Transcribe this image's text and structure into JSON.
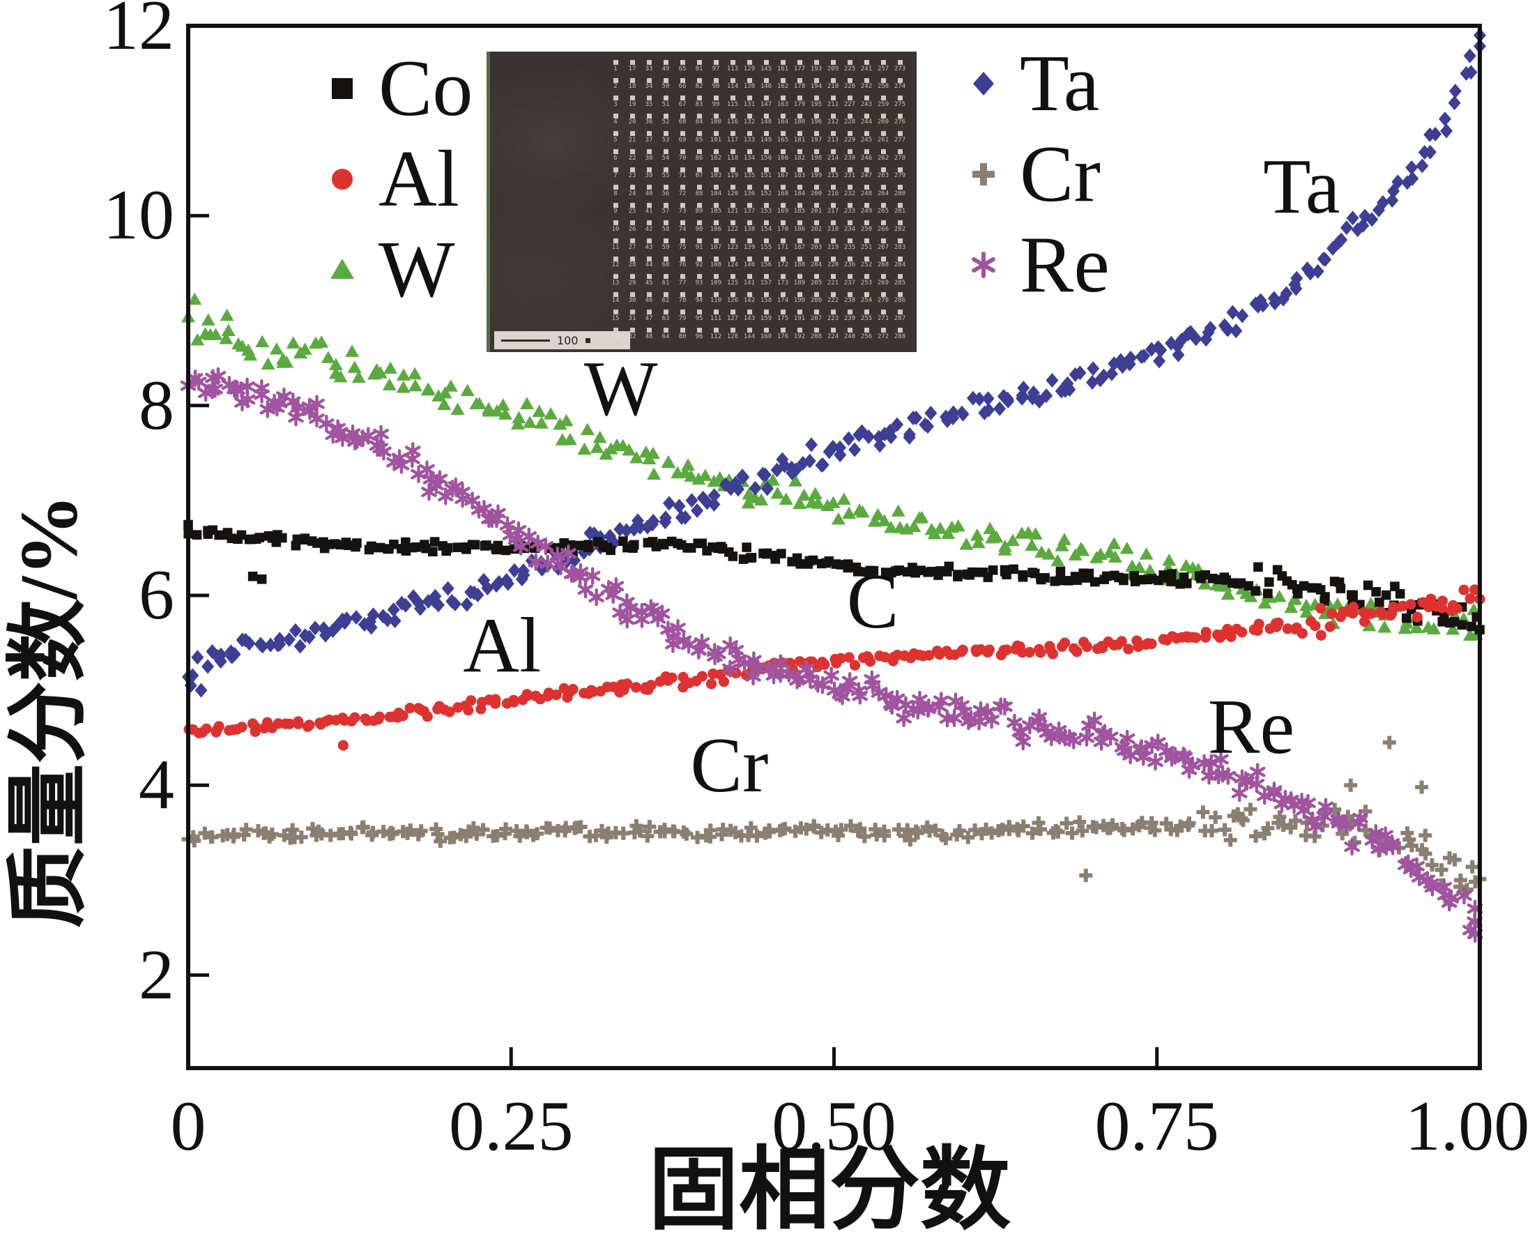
{
  "figure": {
    "background": "#ffffff",
    "axis_color": "#111111"
  },
  "chart_data": {
    "type": "scatter",
    "title": "",
    "xlabel": "固相分数",
    "ylabel": "质量分数/%",
    "xlim": [
      0,
      1.0
    ],
    "ylim": [
      1.02,
      12
    ],
    "grid": false,
    "legend_position": "inside top, two columns",
    "x_ticks": [
      "0",
      "0.25",
      "0.50",
      "0.75",
      "1.00"
    ],
    "x_tick_values": [
      0,
      0.25,
      0.5,
      0.75,
      1.0
    ],
    "y_ticks": [
      "2",
      "4",
      "6",
      "8",
      "10",
      "12"
    ],
    "y_tick_values": [
      2,
      4,
      6,
      8,
      10,
      12
    ],
    "series": [
      {
        "name": "Co",
        "marker": "square",
        "color": "#161210",
        "z": 3,
        "n": 265,
        "noise": 0.06,
        "noise_end": 0.16,
        "boost_from": 0.82,
        "trend": [
          [
            0,
            6.68
          ],
          [
            0.05,
            6.6
          ],
          [
            0.1,
            6.55
          ],
          [
            0.15,
            6.52
          ],
          [
            0.2,
            6.5
          ],
          [
            0.25,
            6.5
          ],
          [
            0.3,
            6.52
          ],
          [
            0.35,
            6.55
          ],
          [
            0.4,
            6.5
          ],
          [
            0.45,
            6.42
          ],
          [
            0.5,
            6.32
          ],
          [
            0.55,
            6.28
          ],
          [
            0.6,
            6.25
          ],
          [
            0.65,
            6.22
          ],
          [
            0.7,
            6.2
          ],
          [
            0.75,
            6.17
          ],
          [
            0.8,
            6.15
          ],
          [
            0.85,
            6.1
          ],
          [
            0.9,
            6.02
          ],
          [
            0.95,
            5.9
          ],
          [
            1,
            5.62
          ]
        ],
        "extra": [
          [
            0.05,
            6.2
          ],
          [
            0.057,
            6.17
          ]
        ]
      },
      {
        "name": "Al",
        "marker": "circle",
        "color": "#de3231",
        "z": 5,
        "n": 255,
        "noise": 0.055,
        "noise_end": 0.15,
        "boost_from": 0.86,
        "trend": [
          [
            0,
            4.56
          ],
          [
            0.05,
            4.6
          ],
          [
            0.1,
            4.66
          ],
          [
            0.15,
            4.72
          ],
          [
            0.2,
            4.8
          ],
          [
            0.25,
            4.9
          ],
          [
            0.3,
            4.97
          ],
          [
            0.35,
            5.05
          ],
          [
            0.4,
            5.12
          ],
          [
            0.45,
            5.26
          ],
          [
            0.5,
            5.3
          ],
          [
            0.55,
            5.35
          ],
          [
            0.6,
            5.4
          ],
          [
            0.65,
            5.42
          ],
          [
            0.7,
            5.45
          ],
          [
            0.75,
            5.5
          ],
          [
            0.8,
            5.6
          ],
          [
            0.85,
            5.68
          ],
          [
            0.9,
            5.76
          ],
          [
            0.95,
            5.88
          ],
          [
            1,
            6.02
          ]
        ],
        "extra": [
          [
            0.12,
            4.42
          ]
        ]
      },
      {
        "name": "W",
        "marker": "triangle",
        "color": "#5baa3f",
        "z": 1,
        "n": 215,
        "noise": 0.16,
        "noise_end": 0.2,
        "boost_from": 0.9,
        "trend": [
          [
            0,
            8.8
          ],
          [
            0.05,
            8.62
          ],
          [
            0.1,
            8.5
          ],
          [
            0.15,
            8.32
          ],
          [
            0.2,
            8.12
          ],
          [
            0.25,
            7.92
          ],
          [
            0.3,
            7.7
          ],
          [
            0.35,
            7.5
          ],
          [
            0.4,
            7.25
          ],
          [
            0.45,
            7.12
          ],
          [
            0.5,
            6.95
          ],
          [
            0.55,
            6.82
          ],
          [
            0.6,
            6.62
          ],
          [
            0.65,
            6.52
          ],
          [
            0.7,
            6.45
          ],
          [
            0.75,
            6.32
          ],
          [
            0.8,
            6.1
          ],
          [
            0.85,
            5.95
          ],
          [
            0.9,
            5.82
          ],
          [
            0.95,
            5.75
          ],
          [
            1,
            5.72
          ]
        ],
        "extra": [
          [
            0.005,
            9.12
          ],
          [
            0.03,
            8.95
          ]
        ]
      },
      {
        "name": "Ta",
        "marker": "diamond",
        "color": "#3c3f93",
        "z": 2,
        "n": 255,
        "noise": 0.12,
        "noise_end": 0.15,
        "boost_from": 0.97,
        "trend": [
          [
            0,
            5.22
          ],
          [
            0.05,
            5.45
          ],
          [
            0.1,
            5.62
          ],
          [
            0.15,
            5.8
          ],
          [
            0.2,
            5.96
          ],
          [
            0.25,
            6.2
          ],
          [
            0.3,
            6.45
          ],
          [
            0.35,
            6.75
          ],
          [
            0.4,
            7.0
          ],
          [
            0.45,
            7.3
          ],
          [
            0.5,
            7.52
          ],
          [
            0.55,
            7.72
          ],
          [
            0.6,
            7.95
          ],
          [
            0.65,
            8.1
          ],
          [
            0.7,
            8.3
          ],
          [
            0.75,
            8.55
          ],
          [
            0.8,
            8.82
          ],
          [
            0.85,
            9.2
          ],
          [
            0.9,
            9.8
          ],
          [
            0.94,
            10.3
          ],
          [
            0.97,
            10.9
          ],
          [
            1,
            11.75
          ]
        ],
        "extra": [
          [
            0.002,
            5.05
          ],
          [
            0.01,
            5.0
          ],
          [
            1.0,
            11.9
          ]
        ]
      },
      {
        "name": "Cr",
        "marker": "cross",
        "color": "#8b7f71",
        "z": 4,
        "n": 235,
        "noise": 0.07,
        "noise_end": 0.2,
        "boost_from": 0.78,
        "trend": [
          [
            0,
            3.47
          ],
          [
            0.1,
            3.5
          ],
          [
            0.2,
            3.5
          ],
          [
            0.3,
            3.52
          ],
          [
            0.4,
            3.5
          ],
          [
            0.5,
            3.52
          ],
          [
            0.6,
            3.5
          ],
          [
            0.7,
            3.55
          ],
          [
            0.8,
            3.6
          ],
          [
            0.85,
            3.62
          ],
          [
            0.9,
            3.55
          ],
          [
            0.95,
            3.35
          ],
          [
            1,
            3.02
          ]
        ],
        "extra": [
          [
            0.93,
            4.45
          ],
          [
            0.9,
            4.0
          ],
          [
            0.955,
            3.98
          ],
          [
            0.695,
            3.05
          ],
          [
            0.97,
            2.95
          ],
          [
            0.99,
            2.9
          ]
        ]
      },
      {
        "name": "Re",
        "marker": "asterisk",
        "color": "#a0549f",
        "z": 6,
        "n": 265,
        "noise": 0.15,
        "noise_end": 0.2,
        "boost_from": 0.9,
        "trend": [
          [
            0,
            8.32
          ],
          [
            0.04,
            8.15
          ],
          [
            0.08,
            7.98
          ],
          [
            0.12,
            7.72
          ],
          [
            0.16,
            7.45
          ],
          [
            0.2,
            7.1
          ],
          [
            0.24,
            6.78
          ],
          [
            0.28,
            6.45
          ],
          [
            0.32,
            6.05
          ],
          [
            0.36,
            5.72
          ],
          [
            0.4,
            5.45
          ],
          [
            0.45,
            5.22
          ],
          [
            0.5,
            5.05
          ],
          [
            0.55,
            4.9
          ],
          [
            0.6,
            4.78
          ],
          [
            0.65,
            4.62
          ],
          [
            0.7,
            4.5
          ],
          [
            0.75,
            4.35
          ],
          [
            0.8,
            4.12
          ],
          [
            0.85,
            3.88
          ],
          [
            0.89,
            3.6
          ],
          [
            0.93,
            3.35
          ],
          [
            0.96,
            3.0
          ],
          [
            1,
            2.55
          ]
        ],
        "extra": []
      }
    ],
    "annotations": [
      {
        "text": "Ta",
        "fx": 0.862,
        "y": 10.3
      },
      {
        "text": "W",
        "fx": 0.335,
        "y": 8.17
      },
      {
        "text": "C",
        "fx": 0.53,
        "y": 5.93
      },
      {
        "text": "Al",
        "fx": 0.243,
        "y": 5.47
      },
      {
        "text": "Cr",
        "fx": 0.419,
        "y": 4.21
      },
      {
        "text": "Re",
        "fx": 0.823,
        "y": 4.61
      }
    ]
  },
  "inset": {
    "description": "dark SEM micrograph with numbered micro-indentation grid",
    "rows": 16,
    "cols": 18,
    "scalebar_text": "100"
  }
}
